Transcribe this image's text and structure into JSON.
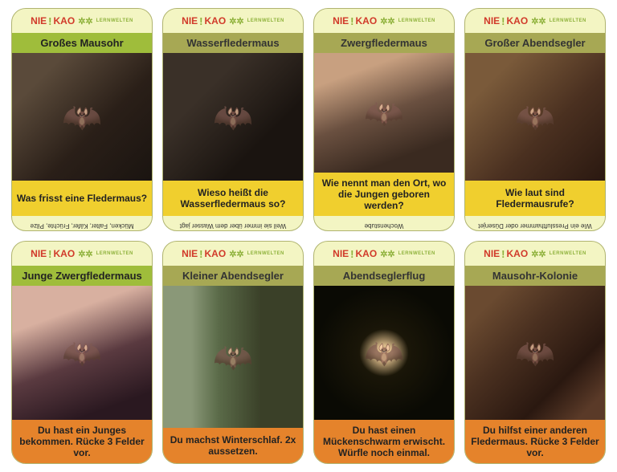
{
  "logo": {
    "nie": "NIE",
    "excl": "!",
    "kao": "KAO",
    "sub": "LERNWELTEN"
  },
  "row1": [
    {
      "title": "Großes Mausohr",
      "titleClass": "title-green",
      "imgClass": "bat-img1",
      "question": "Was frisst eine Fledermaus?",
      "questionClass": "q-yellow",
      "answer": "Mücken, Falter, Käfer, Früchte, Pilze"
    },
    {
      "title": "Wasserfledermaus",
      "titleClass": "title-olive",
      "imgClass": "bat-img2",
      "question": "Wieso heißt die Wasserfledermaus so?",
      "questionClass": "q-yellow",
      "answer": "Weil sie immer über dem Wasser jagt"
    },
    {
      "title": "Zwergfledermaus",
      "titleClass": "title-olive",
      "imgClass": "bat-img3",
      "question": "Wie nennt man den Ort, wo die Jungen geboren werden?",
      "questionClass": "q-yellow",
      "answer": "Wochenstube"
    },
    {
      "title": "Großer Abendsegler",
      "titleClass": "title-olive",
      "imgClass": "bat-img4",
      "question": "Wie laut sind Fledermausrufe?",
      "questionClass": "q-yellow",
      "answer": "Wie ein Presslufthammer oder Düsenjet"
    }
  ],
  "row2": [
    {
      "title": "Junge Zwergfledermaus",
      "titleClass": "title-green",
      "imgClass": "bat-img5",
      "question": "Du hast ein Junges bekommen. Rücke 3 Felder vor.",
      "questionClass": "q-orange",
      "answer": ""
    },
    {
      "title": "Kleiner Abendsegler",
      "titleClass": "title-olive",
      "imgClass": "bat-img6",
      "question": "Du machst Winterschlaf. 2x aussetzen.",
      "questionClass": "q-orange",
      "answer": ""
    },
    {
      "title": "Abendseglerflug",
      "titleClass": "title-olive",
      "imgClass": "bat-img7",
      "question": "Du hast einen Mückenschwarm erwischt. Würfle noch einmal.",
      "questionClass": "q-orange",
      "answer": ""
    },
    {
      "title": "Mausohr-Kolonie",
      "titleClass": "title-olive",
      "imgClass": "bat-img8",
      "question": "Du hilfst einer anderen Fledermaus. Rücke 3 Felder vor.",
      "questionClass": "q-orange",
      "answer": ""
    }
  ]
}
